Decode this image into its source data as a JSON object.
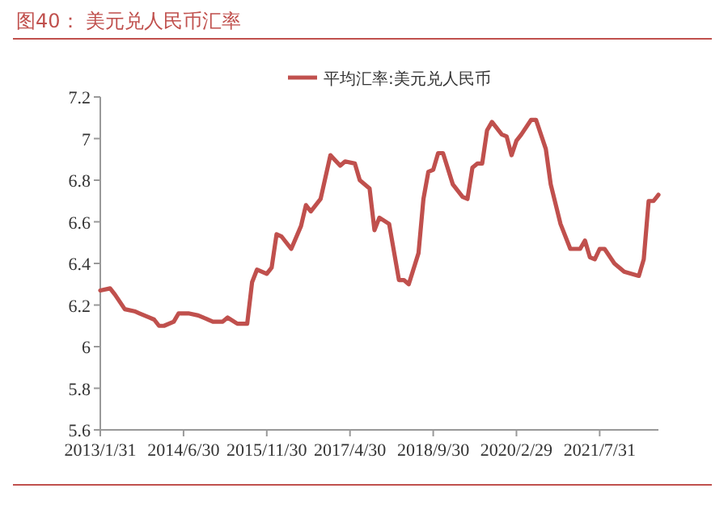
{
  "chart_data": {
    "type": "line",
    "title": "图40：  美元兑人民币汇率",
    "legend": "top",
    "grid": false,
    "x": [
      "2013-01",
      "2013-03",
      "2013-04",
      "2013-06",
      "2013-08",
      "2013-09",
      "2013-11",
      "2013-12",
      "2014-01",
      "2014-02",
      "2014-04",
      "2014-05",
      "2014-07",
      "2014-09",
      "2014-10",
      "2014-12",
      "2015-02",
      "2015-03",
      "2015-05",
      "2015-07",
      "2015-08",
      "2015-09",
      "2015-11",
      "2015-12",
      "2016-01",
      "2016-02",
      "2016-04",
      "2016-06",
      "2016-07",
      "2016-08",
      "2016-10",
      "2016-12",
      "2017-02",
      "2017-03",
      "2017-05",
      "2017-06",
      "2017-08",
      "2017-09",
      "2017-10",
      "2017-12",
      "2018-02",
      "2018-03",
      "2018-04",
      "2018-06",
      "2018-07",
      "2018-08",
      "2018-09",
      "2018-10",
      "2018-11",
      "2019-01",
      "2019-03",
      "2019-04",
      "2019-05",
      "2019-06",
      "2019-07",
      "2019-08",
      "2019-09",
      "2019-11",
      "2019-12",
      "2020-01",
      "2020-02",
      "2020-03",
      "2020-05",
      "2020-06",
      "2020-08",
      "2020-09",
      "2020-11",
      "2021-01",
      "2021-03",
      "2021-04",
      "2021-05",
      "2021-06",
      "2021-07",
      "2021-08",
      "2021-10",
      "2021-12",
      "2022-03",
      "2022-04",
      "2022-05",
      "2022-06",
      "2022-07"
    ],
    "series": [
      {
        "name": "平均汇率:美元兑人民币",
        "color": "#c0504d",
        "values": [
          6.27,
          6.28,
          6.25,
          6.18,
          6.17,
          6.16,
          6.14,
          6.13,
          6.1,
          6.1,
          6.12,
          6.16,
          6.16,
          6.15,
          6.14,
          6.12,
          6.12,
          6.14,
          6.11,
          6.11,
          6.31,
          6.37,
          6.35,
          6.38,
          6.54,
          6.53,
          6.47,
          6.58,
          6.68,
          6.65,
          6.71,
          6.92,
          6.87,
          6.89,
          6.88,
          6.8,
          6.76,
          6.56,
          6.62,
          6.59,
          6.32,
          6.32,
          6.3,
          6.45,
          6.71,
          6.84,
          6.85,
          6.93,
          6.93,
          6.78,
          6.72,
          6.71,
          6.86,
          6.88,
          6.88,
          7.04,
          7.08,
          7.02,
          7.01,
          6.92,
          6.99,
          7.02,
          7.09,
          7.09,
          6.95,
          6.78,
          6.59,
          6.47,
          6.47,
          6.51,
          6.43,
          6.42,
          6.47,
          6.47,
          6.4,
          6.36,
          6.34,
          6.42,
          6.7,
          6.7,
          6.73
        ]
      }
    ],
    "xlim": [
      "2013-01",
      "2022-07"
    ],
    "xticks": [
      {
        "value": "2013-01",
        "label": "2013/1/31"
      },
      {
        "value": "2014-06",
        "label": "2014/6/30"
      },
      {
        "value": "2015-11",
        "label": "2015/11/30"
      },
      {
        "value": "2017-04",
        "label": "2017/4/30"
      },
      {
        "value": "2018-09",
        "label": "2018/9/30"
      },
      {
        "value": "2020-02",
        "label": "2020/2/29"
      },
      {
        "value": "2021-07",
        "label": "2021/7/31"
      }
    ],
    "ylim": [
      5.6,
      7.2
    ],
    "yticks": [
      5.6,
      5.8,
      6,
      6.2,
      6.4,
      6.6,
      6.8,
      7,
      7.2
    ]
  }
}
